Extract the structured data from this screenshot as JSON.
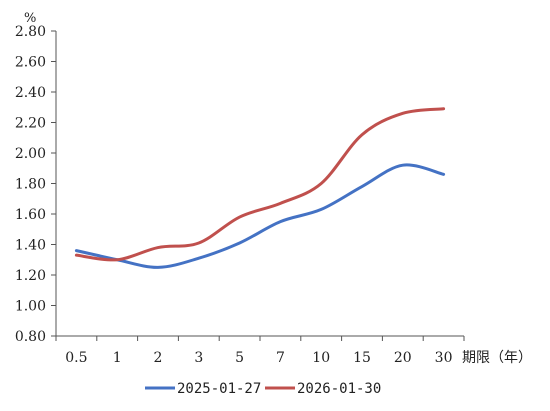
{
  "chart_data": {
    "type": "line",
    "y_unit_label": "%",
    "x_unit_label": "期限（年）",
    "categories": [
      "0.5",
      "1",
      "2",
      "3",
      "5",
      "7",
      "10",
      "15",
      "20",
      "30"
    ],
    "ylim": [
      0.8,
      2.8
    ],
    "yticks": [
      "0.80",
      "1.00",
      "1.20",
      "1.40",
      "1.60",
      "1.80",
      "2.00",
      "2.20",
      "2.40",
      "2.60",
      "2.80"
    ],
    "grid": false,
    "legend_position": "bottom",
    "series": [
      {
        "name": "2025-01-27",
        "color": "#4472c4",
        "values": [
          1.36,
          1.3,
          1.25,
          1.31,
          1.41,
          1.55,
          1.63,
          1.78,
          1.92,
          1.86
        ]
      },
      {
        "name": "2026-01-30",
        "color": "#c0504d",
        "values": [
          1.33,
          1.3,
          1.38,
          1.41,
          1.58,
          1.67,
          1.8,
          2.12,
          2.26,
          2.29
        ]
      }
    ]
  }
}
